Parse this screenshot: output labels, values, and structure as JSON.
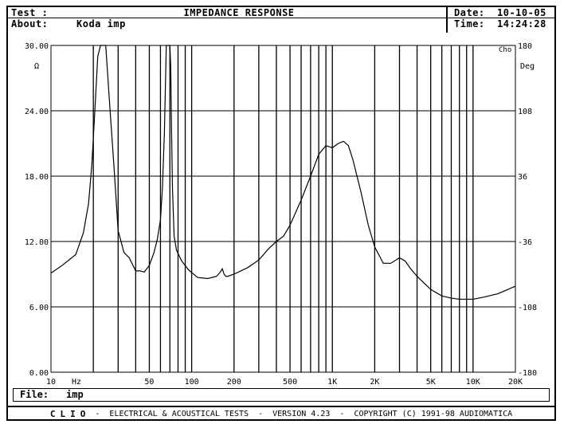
{
  "header": {
    "test_label": "Test :",
    "title": "IMPEDANCE RESPONSE",
    "about_label": "About:",
    "about_value": "Koda imp",
    "date_label": "Date:",
    "date_value": "10-10-05",
    "time_label": "Time:",
    "time_value": "14:24:28"
  },
  "file": {
    "label": "File:",
    "value": "imp"
  },
  "footer": {
    "brand": "CLIO",
    "text": " -  ELECTRICAL & ACOUSTICAL TESTS  -  VERSION 4.23  -  COPYRIGHT (C) 1991-98 AUDIOMATICA"
  },
  "chart_data": {
    "type": "line",
    "title": "IMPEDANCE RESPONSE",
    "xscale": "log",
    "xlim": [
      10,
      20000
    ],
    "ylim": [
      0,
      30
    ],
    "y2lim": [
      -180,
      180
    ],
    "xlabel_unit": "Hz",
    "ylabel": "Ω",
    "y2label": "Deg",
    "corner_label": "Cho",
    "x_ticks": [
      {
        "v": 10,
        "label": "10"
      },
      {
        "v": 50,
        "label": "50"
      },
      {
        "v": 100,
        "label": "100"
      },
      {
        "v": 200,
        "label": "200"
      },
      {
        "v": 500,
        "label": "500"
      },
      {
        "v": 1000,
        "label": "1K"
      },
      {
        "v": 2000,
        "label": "2K"
      },
      {
        "v": 5000,
        "label": "5K"
      },
      {
        "v": 10000,
        "label": "10K"
      },
      {
        "v": 20000,
        "label": "20K"
      }
    ],
    "y_ticks": [
      {
        "v": 0,
        "label": "0.00"
      },
      {
        "v": 6,
        "label": "6.00"
      },
      {
        "v": 12,
        "label": "12.00"
      },
      {
        "v": 18,
        "label": "18.00"
      },
      {
        "v": 24,
        "label": "24.00"
      },
      {
        "v": 30,
        "label": "30.00"
      }
    ],
    "y2_ticks": [
      {
        "v": -180,
        "label": "-180"
      },
      {
        "v": -108,
        "label": "-108"
      },
      {
        "v": -36,
        "label": "-36"
      },
      {
        "v": 36,
        "label": "36"
      },
      {
        "v": 108,
        "label": "108"
      },
      {
        "v": 180,
        "label": "180"
      }
    ],
    "grid": true,
    "series": [
      {
        "name": "",
        "color": "#000000",
        "x": [
          10,
          12,
          15,
          17,
          18.5,
          19.5,
          20.5,
          21.5,
          22.5,
          23.5,
          24.5,
          26,
          28,
          30,
          33,
          36,
          40,
          43,
          46,
          50,
          54,
          57,
          60,
          62,
          64,
          65,
          66,
          67,
          68,
          69,
          70,
          71,
          72,
          73,
          75,
          78,
          85,
          95,
          110,
          130,
          150,
          160,
          165,
          170,
          175,
          180,
          200,
          250,
          300,
          350,
          400,
          450,
          500,
          600,
          700,
          800,
          900,
          1000,
          1100,
          1200,
          1300,
          1400,
          1600,
          1800,
          2000,
          2300,
          2600,
          3000,
          3300,
          3600,
          4000,
          5000,
          6000,
          7000,
          8000,
          9000,
          10000,
          12000,
          15000,
          20000
        ],
        "y": [
          9.1,
          9.8,
          10.8,
          12.8,
          15.5,
          19,
          24,
          29,
          30,
          30,
          30,
          25,
          19,
          13,
          11,
          10.5,
          9.3,
          9.3,
          9.2,
          9.8,
          11,
          12.2,
          14,
          17,
          22,
          26,
          30,
          30,
          30,
          30,
          30,
          28,
          22,
          17,
          12.5,
          11.2,
          10.2,
          9.4,
          8.7,
          8.6,
          8.8,
          9.2,
          9.5,
          9.0,
          8.8,
          8.8,
          9.0,
          9.6,
          10.3,
          11.3,
          12.0,
          12.5,
          13.5,
          15.8,
          18.0,
          20.0,
          20.8,
          20.6,
          21.0,
          21.2,
          20.8,
          19.5,
          16.5,
          13.5,
          11.5,
          10.0,
          10.0,
          10.5,
          10.2,
          9.5,
          8.8,
          7.6,
          7.0,
          6.8,
          6.7,
          6.7,
          6.7,
          6.9,
          7.2,
          7.9
        ]
      }
    ]
  }
}
